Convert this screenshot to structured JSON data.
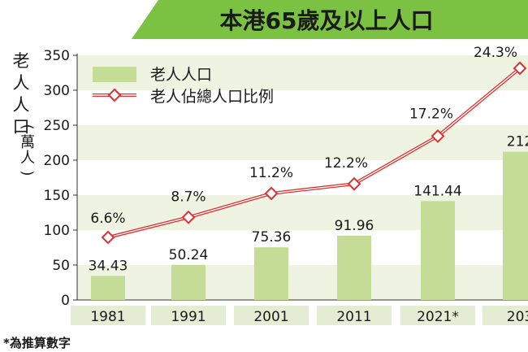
{
  "chart_data": {
    "type": "bar",
    "title": "本港65歲及以上人口",
    "ylabel": "老人人口(萬人)",
    "ylim": [
      0,
      350
    ],
    "yticks": [
      0,
      50,
      100,
      150,
      200,
      250,
      300,
      350
    ],
    "categories": [
      "1981",
      "1991",
      "2001",
      "2011",
      "2021*",
      "203"
    ],
    "series": [
      {
        "name": "老人人口",
        "type": "bar",
        "values": [
          34.43,
          50.24,
          75.36,
          91.96,
          141.44,
          212
        ],
        "labels": [
          "34.43",
          "50.24",
          "75.36",
          "91.96",
          "141.44",
          "212"
        ]
      },
      {
        "name": "老人佔總人口比例",
        "type": "line",
        "values": [
          6.6,
          8.7,
          11.2,
          12.2,
          17.2,
          24.3
        ],
        "labels": [
          "6.6%",
          "8.7%",
          "11.2%",
          "12.2%",
          "17.2%",
          "24.3%"
        ]
      }
    ],
    "note": "*為推算數字"
  },
  "colors": {
    "title_bg": "#7cc242",
    "title_text": "#ffffff",
    "bar": "#c5dc96",
    "line": "#e03030",
    "marker_fill": "#ffffff",
    "band_light": "#eef3e2",
    "band_white": "#ffffff",
    "xaxis_cell": "#e4ecd4"
  }
}
